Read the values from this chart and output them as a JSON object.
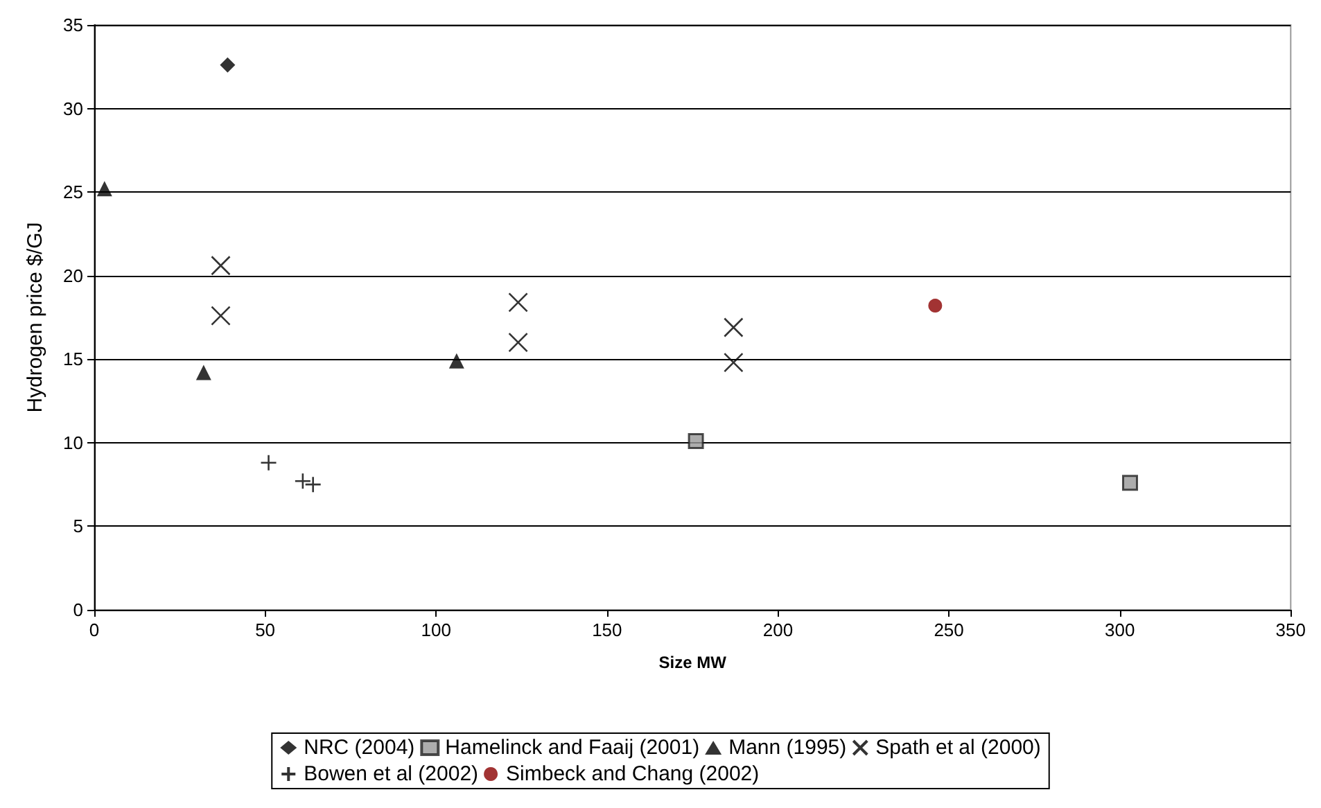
{
  "chart_data": {
    "type": "scatter",
    "xlabel": "Size MW",
    "ylabel": "Hydrogen price $/GJ",
    "xlim": [
      0,
      350
    ],
    "xticks": [
      0,
      50,
      100,
      150,
      200,
      250,
      300,
      350
    ],
    "ylim": [
      0,
      35
    ],
    "yticks": [
      0,
      5,
      10,
      15,
      20,
      25,
      30,
      35
    ],
    "grid": "y",
    "legend": "bottom",
    "series": [
      {
        "name": "NRC (2004)",
        "color": "#000000",
        "marker": "diamond",
        "x": [
          39
        ],
        "values": [
          32.6
        ]
      },
      {
        "name": "Hamelinck and Faaij (2001)",
        "color": "#999999",
        "marker": "square",
        "x": [
          176,
          303
        ],
        "values": [
          10.1,
          7.6
        ]
      },
      {
        "name": "Mann (1995)",
        "color": "#000000",
        "marker": "triangle",
        "x": [
          3,
          32,
          106
        ],
        "values": [
          25.2,
          14.2,
          14.9
        ]
      },
      {
        "name": "Spath et al (2000)",
        "color": "#000000",
        "marker": "x",
        "x": [
          37,
          37,
          124,
          124,
          187,
          187
        ],
        "values": [
          20.6,
          17.6,
          18.4,
          16.0,
          16.9,
          14.8
        ]
      },
      {
        "name": "Bowen et al (2002)",
        "color": "#000000",
        "marker": "cross",
        "x": [
          51,
          61,
          64
        ],
        "values": [
          8.8,
          7.7,
          7.5
        ]
      },
      {
        "name": "Simbeck and Chang (2002)",
        "color": "#8b0000",
        "marker": "circle",
        "x": [
          246
        ],
        "values": [
          18.2
        ]
      }
    ]
  }
}
